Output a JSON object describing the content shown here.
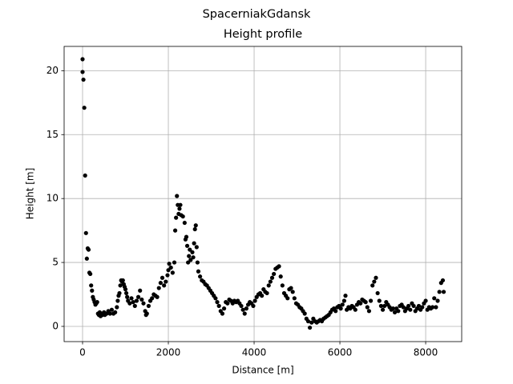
{
  "chart_data": {
    "type": "scatter",
    "suptitle": "SpacerniakGdansk",
    "title": "Height profile",
    "xlabel": "Distance [m]",
    "ylabel": "Height [m]",
    "color": "#000000",
    "grid": true,
    "xlim": [
      -430,
      8840
    ],
    "ylim": [
      -1.19,
      21.9
    ],
    "xticks": [
      0,
      2000,
      4000,
      6000,
      8000
    ],
    "yticks": [
      0,
      5,
      10,
      15,
      20
    ],
    "x": [
      0,
      0,
      20,
      40,
      60,
      80,
      100,
      120,
      140,
      160,
      180,
      200,
      220,
      240,
      260,
      280,
      300,
      320,
      340,
      360,
      380,
      400,
      420,
      440,
      460,
      500,
      520,
      560,
      600,
      640,
      680,
      720,
      760,
      800,
      820,
      840,
      860,
      880,
      900,
      920,
      940,
      960,
      980,
      1000,
      1020,
      1040,
      1060,
      1100,
      1140,
      1180,
      1220,
      1260,
      1300,
      1340,
      1380,
      1420,
      1460,
      1480,
      1500,
      1540,
      1580,
      1620,
      1660,
      1700,
      1740,
      1780,
      1820,
      1860,
      1900,
      1940,
      1980,
      2000,
      2020,
      2060,
      2100,
      2140,
      2160,
      2180,
      2200,
      2220,
      2240,
      2260,
      2280,
      2300,
      2340,
      2380,
      2400,
      2420,
      2440,
      2460,
      2480,
      2500,
      2520,
      2560,
      2580,
      2600,
      2620,
      2640,
      2660,
      2680,
      2700,
      2740,
      2780,
      2820,
      2860,
      2900,
      2940,
      2980,
      3020,
      3060,
      3100,
      3140,
      3180,
      3220,
      3260,
      3300,
      3340,
      3380,
      3420,
      3460,
      3500,
      3540,
      3580,
      3620,
      3660,
      3700,
      3740,
      3780,
      3820,
      3860,
      3900,
      3940,
      3980,
      4020,
      4060,
      4100,
      4140,
      4180,
      4220,
      4260,
      4300,
      4340,
      4380,
      4420,
      4460,
      4500,
      4540,
      4580,
      4620,
      4660,
      4700,
      4740,
      4780,
      4820,
      4860,
      4900,
      4940,
      4980,
      5020,
      5060,
      5100,
      5140,
      5180,
      5220,
      5260,
      5300,
      5340,
      5380,
      5420,
      5460,
      5500,
      5540,
      5580,
      5620,
      5660,
      5700,
      5740,
      5780,
      5820,
      5860,
      5900,
      5940,
      5980,
      6020,
      6060,
      6100,
      6130,
      6160,
      6200,
      6240,
      6280,
      6320,
      6360,
      6400,
      6440,
      6480,
      6520,
      6560,
      6600,
      6640,
      6680,
      6720,
      6760,
      6800,
      6840,
      6880,
      6920,
      6960,
      7000,
      7040,
      7080,
      7120,
      7160,
      7200,
      7240,
      7280,
      7320,
      7360,
      7400,
      7440,
      7480,
      7520,
      7560,
      7600,
      7640,
      7680,
      7720,
      7760,
      7800,
      7840,
      7880,
      7920,
      7960,
      8000,
      8040,
      8080,
      8120,
      8160,
      8200,
      8240,
      8280,
      8320,
      8360,
      8400,
      8420
    ],
    "y": [
      20.9,
      19.9,
      19.3,
      17.1,
      11.8,
      7.3,
      5.3,
      6.1,
      6.0,
      4.2,
      4.1,
      3.2,
      2.8,
      2.3,
      2.1,
      1.9,
      1.7,
      1.8,
      1.9,
      1.0,
      0.9,
      1.1,
      0.8,
      1.0,
      0.9,
      1.1,
      0.9,
      1.0,
      1.2,
      1.0,
      1.3,
      1.0,
      1.1,
      1.5,
      2.0,
      2.4,
      2.6,
      3.2,
      3.6,
      3.5,
      3.6,
      3.3,
      3.1,
      2.9,
      2.6,
      2.3,
      2.0,
      1.8,
      2.2,
      1.9,
      1.6,
      2.0,
      2.3,
      2.8,
      2.1,
      1.8,
      1.2,
      0.9,
      1.0,
      1.6,
      2.0,
      2.2,
      2.5,
      2.4,
      2.3,
      3.0,
      3.4,
      3.8,
      3.2,
      3.5,
      4.0,
      4.4,
      4.9,
      4.6,
      4.2,
      5.0,
      7.5,
      8.5,
      10.2,
      9.5,
      8.8,
      9.2,
      9.5,
      8.7,
      8.6,
      8.1,
      6.8,
      7.0,
      6.3,
      5.0,
      5.5,
      6.0,
      5.2,
      5.8,
      5.4,
      6.5,
      7.6,
      7.9,
      6.2,
      5.0,
      4.3,
      3.9,
      3.6,
      3.5,
      3.3,
      3.2,
      3.0,
      2.8,
      2.6,
      2.4,
      2.2,
      1.9,
      1.6,
      1.2,
      1.0,
      1.4,
      1.9,
      1.8,
      2.1,
      2.0,
      1.8,
      2.0,
      1.9,
      2.0,
      1.8,
      1.6,
      1.3,
      1.0,
      1.4,
      1.7,
      1.9,
      1.8,
      1.6,
      2.0,
      2.3,
      2.5,
      2.6,
      2.4,
      2.9,
      2.7,
      2.6,
      3.2,
      3.5,
      3.8,
      4.1,
      4.5,
      4.6,
      4.7,
      3.9,
      3.2,
      2.6,
      2.4,
      2.2,
      2.9,
      3.0,
      2.7,
      2.2,
      1.8,
      1.7,
      1.5,
      1.4,
      1.2,
      1.0,
      0.6,
      0.4,
      -0.1,
      0.3,
      0.6,
      0.4,
      0.3,
      0.4,
      0.5,
      0.4,
      0.6,
      0.7,
      0.8,
      0.9,
      1.1,
      1.3,
      1.4,
      1.2,
      1.5,
      1.6,
      1.4,
      1.7,
      2.0,
      2.4,
      1.3,
      1.5,
      1.4,
      1.6,
      1.5,
      1.3,
      1.7,
      1.9,
      1.8,
      2.1,
      2.0,
      1.9,
      1.5,
      1.2,
      2.0,
      3.2,
      3.5,
      3.8,
      2.6,
      2.0,
      1.6,
      1.3,
      1.6,
      1.9,
      1.7,
      1.5,
      1.3,
      1.4,
      1.1,
      1.4,
      1.2,
      1.6,
      1.7,
      1.5,
      1.2,
      1.4,
      1.6,
      1.3,
      1.8,
      1.6,
      1.2,
      1.4,
      1.6,
      1.3,
      1.5,
      1.8,
      2.0,
      1.3,
      1.5,
      1.4,
      1.5,
      2.2,
      1.5,
      2.0,
      2.7,
      3.4,
      3.6,
      2.7
    ]
  }
}
